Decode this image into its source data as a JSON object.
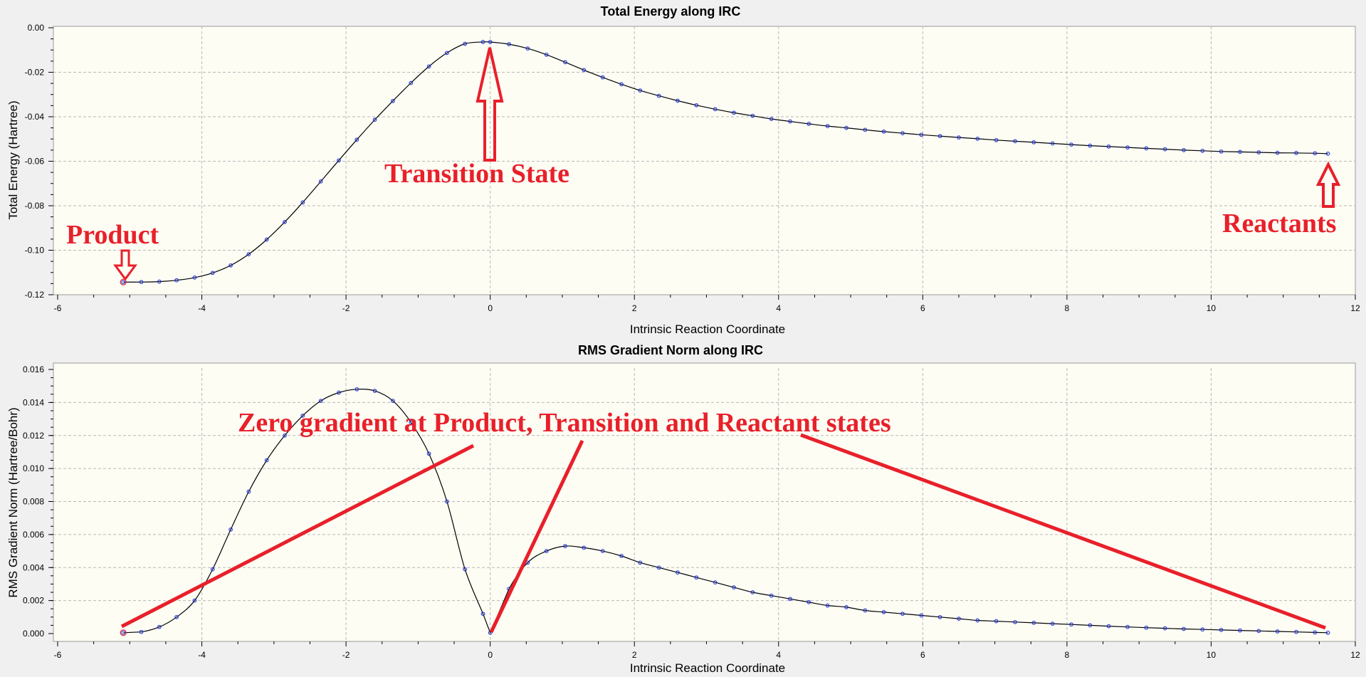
{
  "chart_data": [
    {
      "type": "line",
      "title": "Total Energy along IRC",
      "xlabel": "Intrinsic Reaction Coordinate",
      "ylabel": "Total Energy (Hartree)",
      "xlim": [
        -6,
        12
      ],
      "ylim": [
        -0.12,
        0.0
      ],
      "grid": true,
      "xticks": [
        -6,
        -4,
        -2,
        0,
        2,
        4,
        6,
        8,
        10,
        12
      ],
      "yticks": [
        0.0,
        -0.02,
        -0.04,
        -0.06,
        -0.08,
        -0.1,
        -0.12
      ],
      "yticklabels": [
        "0.00",
        "-0.02",
        "-0.04",
        "-0.06",
        "-0.08",
        "-0.10",
        "-0.12"
      ],
      "x": [
        -5.09,
        -4.84,
        -4.59,
        -4.35,
        -4.1,
        -3.85,
        -3.6,
        -3.35,
        -3.1,
        -2.85,
        -2.6,
        -2.35,
        -2.1,
        -1.85,
        -1.6,
        -1.35,
        -1.1,
        -0.85,
        -0.6,
        -0.35,
        -0.1,
        0,
        0.26,
        0.52,
        0.78,
        1.04,
        1.3,
        1.56,
        1.82,
        2.08,
        2.34,
        2.6,
        2.86,
        3.12,
        3.38,
        3.64,
        3.9,
        4.16,
        4.42,
        4.68,
        4.94,
        5.2,
        5.46,
        5.72,
        5.98,
        6.24,
        6.5,
        6.76,
        7.02,
        7.28,
        7.54,
        7.8,
        8.06,
        8.32,
        8.58,
        8.84,
        9.1,
        9.36,
        9.62,
        9.88,
        10.14,
        10.4,
        10.66,
        10.92,
        11.18,
        11.44,
        11.62
      ],
      "y": [
        -0.1143,
        -0.1143,
        -0.1141,
        -0.1135,
        -0.1123,
        -0.1102,
        -0.1068,
        -0.1018,
        -0.0952,
        -0.0873,
        -0.0785,
        -0.0691,
        -0.0596,
        -0.0503,
        -0.0413,
        -0.0329,
        -0.0248,
        -0.0174,
        -0.0113,
        -0.0072,
        -0.0064,
        -0.0064,
        -0.0074,
        -0.0093,
        -0.0121,
        -0.0155,
        -0.019,
        -0.0223,
        -0.0254,
        -0.0282,
        -0.0306,
        -0.0328,
        -0.0348,
        -0.0366,
        -0.0382,
        -0.0396,
        -0.041,
        -0.0421,
        -0.0432,
        -0.0442,
        -0.045,
        -0.0459,
        -0.0467,
        -0.0474,
        -0.0481,
        -0.0487,
        -0.0493,
        -0.0499,
        -0.0505,
        -0.051,
        -0.0515,
        -0.052,
        -0.0525,
        -0.053,
        -0.0534,
        -0.0538,
        -0.0542,
        -0.0546,
        -0.055,
        -0.0553,
        -0.0556,
        -0.0558,
        -0.056,
        -0.0562,
        -0.0563,
        -0.0564,
        -0.0566
      ],
      "annotations": [
        {
          "text": "Product",
          "color": "#e8202a"
        },
        {
          "text": "Transition State",
          "color": "#e8202a"
        },
        {
          "text": "Reactants",
          "color": "#e8202a"
        }
      ]
    },
    {
      "type": "line",
      "title": "RMS Gradient Norm along IRC",
      "xlabel": "Intrinsic Reaction Coordinate",
      "ylabel": "RMS Gradient Norm (Hartree/Bohr)",
      "xlim": [
        -6,
        12
      ],
      "ylim": [
        0.0,
        0.016
      ],
      "grid": true,
      "xticks": [
        -6,
        -4,
        -2,
        0,
        2,
        4,
        6,
        8,
        10,
        12
      ],
      "yticks": [
        0.0,
        0.002,
        0.004,
        0.006,
        0.008,
        0.01,
        0.012,
        0.014,
        0.016
      ],
      "yticklabels": [
        "0.000",
        "0.002",
        "0.004",
        "0.006",
        "0.008",
        "0.010",
        "0.012",
        "0.014",
        "0.016"
      ],
      "x": [
        -5.09,
        -4.84,
        -4.59,
        -4.35,
        -4.1,
        -3.85,
        -3.6,
        -3.35,
        -3.1,
        -2.85,
        -2.6,
        -2.35,
        -2.1,
        -1.85,
        -1.6,
        -1.35,
        -1.1,
        -0.85,
        -0.6,
        -0.35,
        -0.1,
        0,
        0.26,
        0.52,
        0.78,
        1.04,
        1.3,
        1.56,
        1.82,
        2.08,
        2.34,
        2.6,
        2.86,
        3.12,
        3.38,
        3.64,
        3.9,
        4.16,
        4.42,
        4.68,
        4.94,
        5.2,
        5.46,
        5.72,
        5.98,
        6.24,
        6.5,
        6.76,
        7.02,
        7.28,
        7.54,
        7.8,
        8.06,
        8.32,
        8.58,
        8.84,
        9.1,
        9.36,
        9.62,
        9.88,
        10.14,
        10.4,
        10.66,
        10.92,
        11.18,
        11.44,
        11.62
      ],
      "y": [
        5e-05,
        0.0001,
        0.0004,
        0.001,
        0.002,
        0.0039,
        0.0063,
        0.0086,
        0.0105,
        0.012,
        0.0132,
        0.0141,
        0.0146,
        0.0148,
        0.0147,
        0.0141,
        0.0128,
        0.0109,
        0.008,
        0.0039,
        0.0012,
        5e-05,
        0.0027,
        0.0043,
        0.005,
        0.0053,
        0.0052,
        0.005,
        0.0047,
        0.0043,
        0.004,
        0.0037,
        0.0034,
        0.0031,
        0.0028,
        0.0025,
        0.0023,
        0.0021,
        0.0019,
        0.0017,
        0.0016,
        0.0014,
        0.0013,
        0.0012,
        0.0011,
        0.001,
        0.0009,
        0.0008,
        0.00075,
        0.0007,
        0.00065,
        0.0006,
        0.00055,
        0.0005,
        0.00045,
        0.0004,
        0.00036,
        0.00032,
        0.00028,
        0.00025,
        0.00022,
        0.00019,
        0.00016,
        0.00013,
        0.0001,
        7e-05,
        5e-05
      ],
      "annotations": [
        {
          "text": "Zero gradient at Product, Transition and Reactant states",
          "color": "#e8202a"
        }
      ]
    }
  ]
}
